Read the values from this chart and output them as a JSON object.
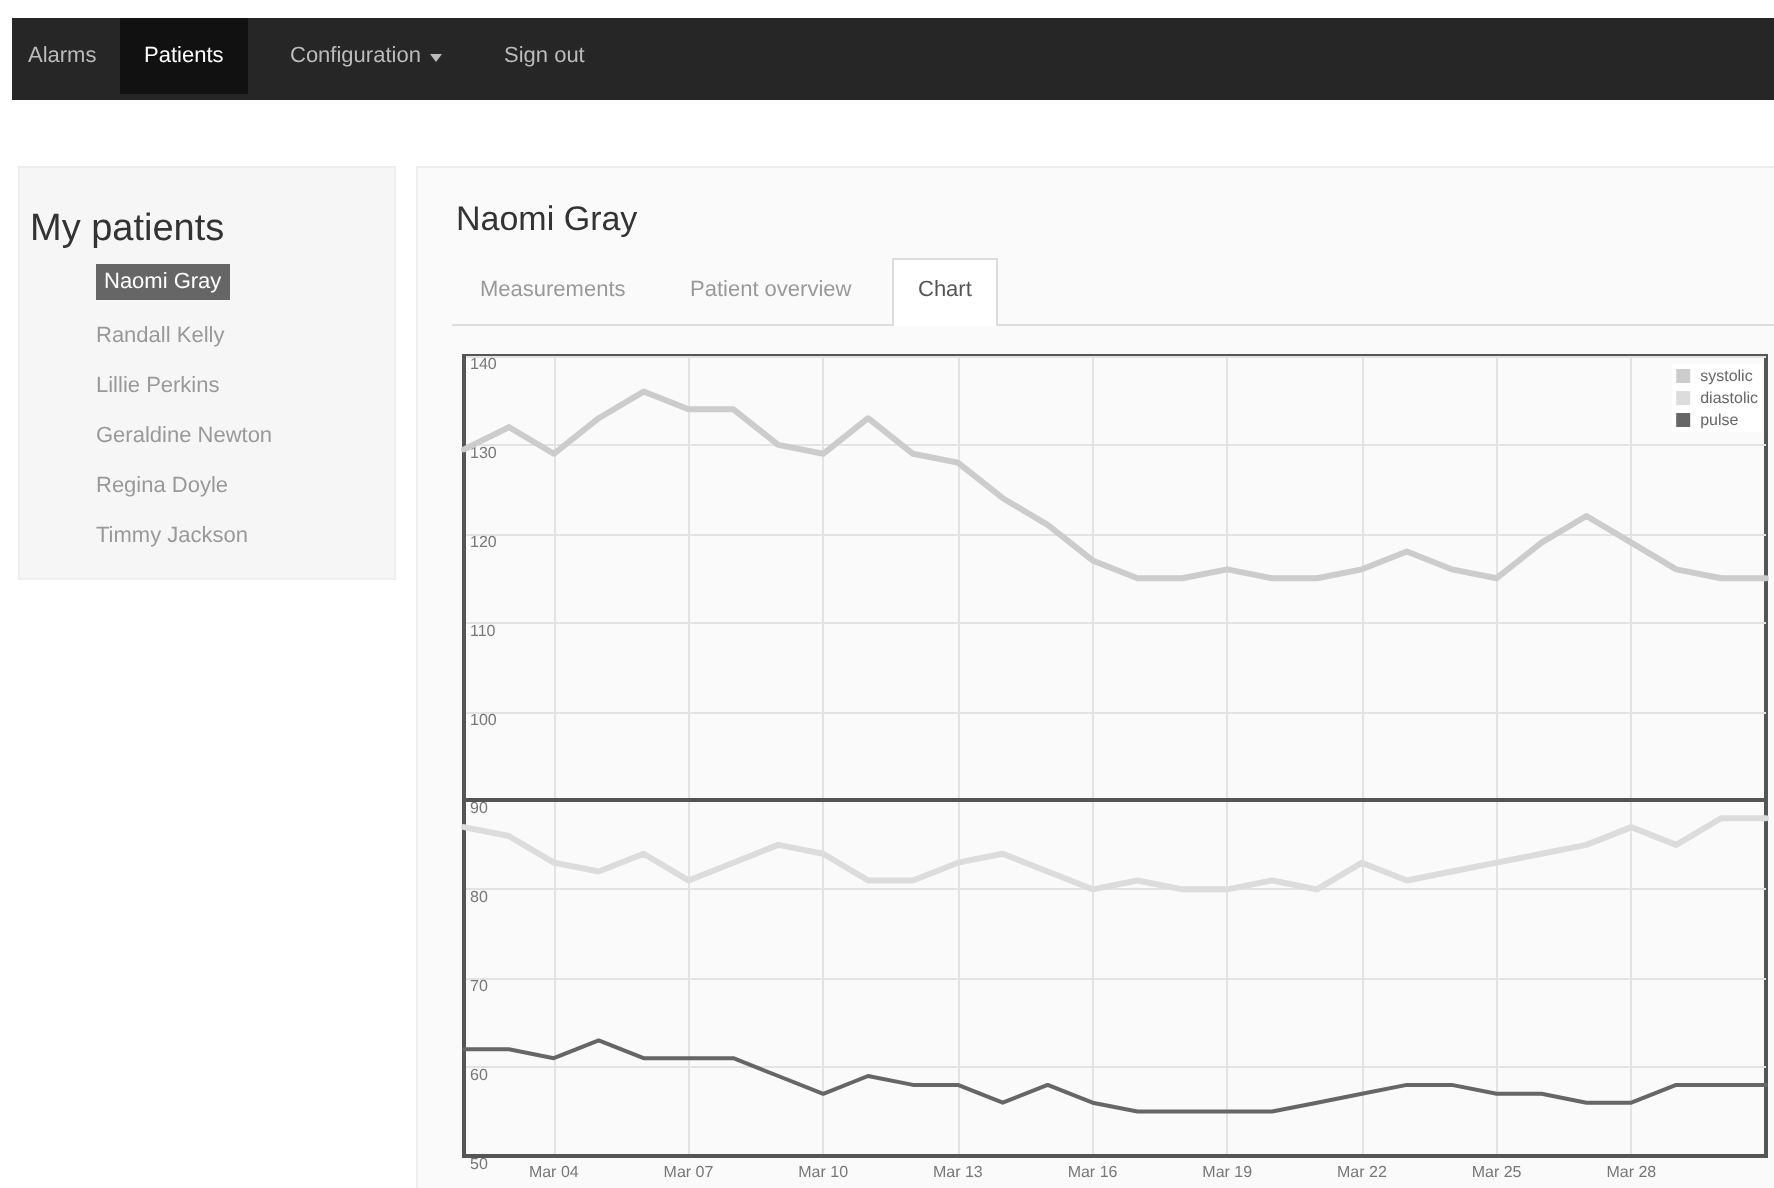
{
  "chart_data": {
    "type": "line",
    "title": "Naomi Gray",
    "annotations": [
      "Alarms",
      "Patients",
      "Configuration",
      "Sign out",
      "My patients",
      "Naomi Gray",
      "Randall Kelly",
      "Lillie Perkins",
      "Geraldine Newton",
      "Regina Doyle",
      "Timmy Jackson",
      "Measurements",
      "Patient overview",
      "Chart"
    ],
    "categories": [
      null,
      null,
      "Mar 04",
      null,
      null,
      "Mar 07",
      null,
      null,
      "Mar 10",
      null,
      null,
      "Mar 13",
      null,
      null,
      "Mar 16",
      null,
      null,
      "Mar 19",
      null,
      null,
      "Mar 22",
      null,
      null,
      "Mar 25",
      null,
      null,
      "Mar 28",
      null,
      null,
      null
    ],
    "series": [
      {
        "name": "systolic",
        "color": "#cccccc",
        "values": [
          129.5,
          132,
          129,
          133,
          136,
          134,
          134,
          130,
          129,
          133,
          129,
          128,
          124,
          121,
          117,
          115,
          115,
          116,
          115,
          115,
          116,
          118,
          116,
          115,
          119,
          122,
          119,
          116,
          115,
          115
        ]
      },
      {
        "name": "diastolic",
        "color": "#dcdcdc",
        "values": [
          87,
          86,
          83,
          82,
          84,
          81,
          83,
          85,
          84,
          81,
          81,
          83,
          84,
          82,
          80,
          81,
          80,
          80,
          81,
          80,
          83,
          81,
          82,
          83,
          84,
          85,
          87,
          85,
          88,
          88
        ]
      },
      {
        "name": "pulse",
        "color": "#666666",
        "values": [
          62,
          62,
          61,
          63,
          61,
          61,
          61,
          59,
          57,
          59,
          58,
          58,
          56,
          58,
          56,
          55,
          55,
          55,
          55,
          56,
          57,
          58,
          58,
          57,
          57,
          56,
          56,
          58,
          58,
          58
        ]
      }
    ],
    "ylim": [
      50,
      140
    ],
    "yticks": [
      50,
      60,
      70,
      80,
      90,
      100,
      110,
      120,
      130,
      140
    ],
    "ref_lines": [
      {
        "axis": "y",
        "value": 90,
        "color": "#555555"
      }
    ],
    "grid": true,
    "legend": "top right",
    "marker": "none",
    "line_style": "solid"
  }
}
